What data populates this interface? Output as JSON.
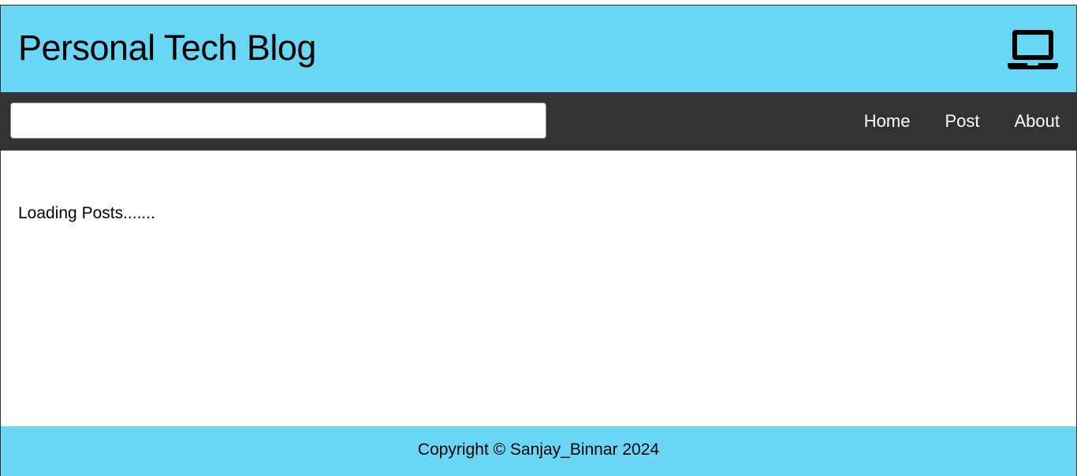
{
  "header": {
    "title": "Personal Tech Blog",
    "icon": "laptop-icon"
  },
  "navbar": {
    "search": {
      "value": "",
      "placeholder": ""
    },
    "links": [
      {
        "label": "Home"
      },
      {
        "label": "Post"
      },
      {
        "label": "About"
      }
    ]
  },
  "main": {
    "status": "Loading Posts......."
  },
  "footer": {
    "copyright": "Copyright © Sanjay_Binnar 2024"
  },
  "colors": {
    "header_bg": "#69d6f5",
    "nav_bg": "#333333",
    "footer_bg": "#69d6f5"
  }
}
